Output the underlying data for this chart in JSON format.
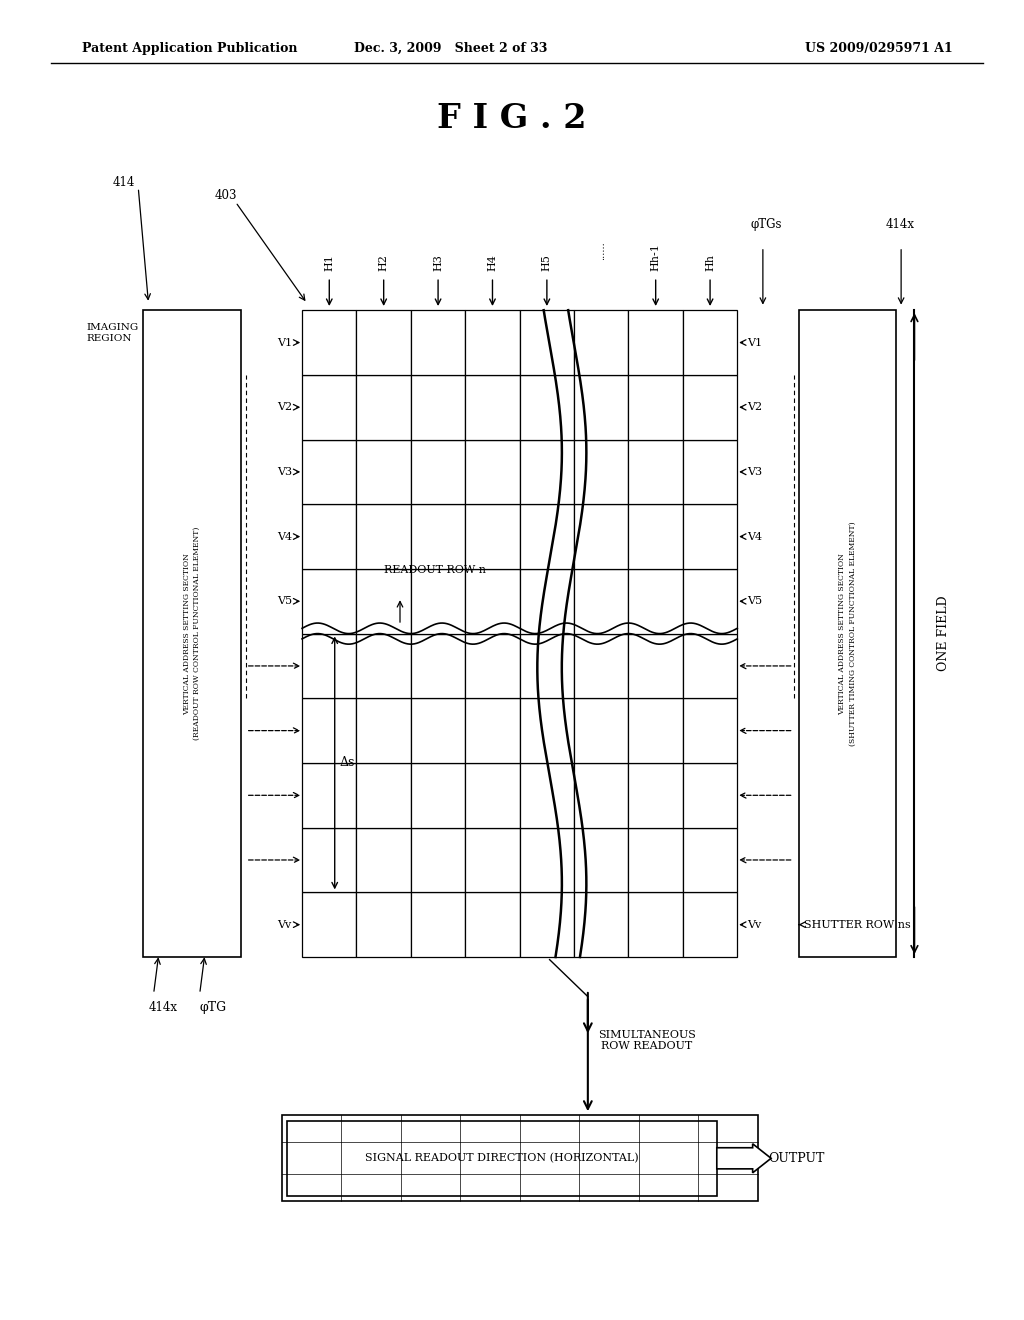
{
  "bg_color": "#ffffff",
  "header_left": "Patent Application Publication",
  "header_mid": "Dec. 3, 2009   Sheet 2 of 33",
  "header_right": "US 2009/0295971 A1",
  "fig_title": "F I G . 2",
  "grid_rows": 10,
  "grid_cols": 8,
  "GL": 0.295,
  "GR": 0.72,
  "GT": 0.765,
  "GB": 0.275,
  "row_labels_left": [
    "V1",
    "V2",
    "V3",
    "V4",
    "V5",
    "",
    "",
    "",
    "",
    "Vv"
  ],
  "row_labels_right": [
    "V1",
    "V2",
    "V3",
    "V4",
    "V5",
    "",
    "",
    "",
    "",
    "Vv"
  ],
  "col_labels": [
    "H1",
    "H2",
    "H3",
    "H4",
    "H5",
    "......",
    "Hh-1",
    "Hh"
  ],
  "label_414": "414",
  "label_403": "403",
  "label_414x_top": "414x",
  "label_phiTGs": "φTGs",
  "label_414x_bot": "414x",
  "label_phiTG": "φTG",
  "left_box_text": "VERTICAL ADDRESS SETTING SECTION\n(READOUT ROW CONTROL FUNCTIONAL ELEMENT)",
  "right_box_text": "VERTICAL ADDRESS SETTING SECTION\n(SHUTTER TIMING CONTROL FUNCTIONAL ELEMENT)",
  "one_field_text": "ONE FIELD",
  "readout_row_text": "READOUT ROW n",
  "delta_s_text": "Δs",
  "imaging_region_text": "IMAGING\nREGION",
  "simultaneous_text": "SIMULTANEOUS\nROW READOUT",
  "signal_readout_text": "SIGNAL READOUT DIRECTION (HORIZONTAL)",
  "output_text": "OUTPUT",
  "shutter_row_text": "SHUTTER ROW ns"
}
